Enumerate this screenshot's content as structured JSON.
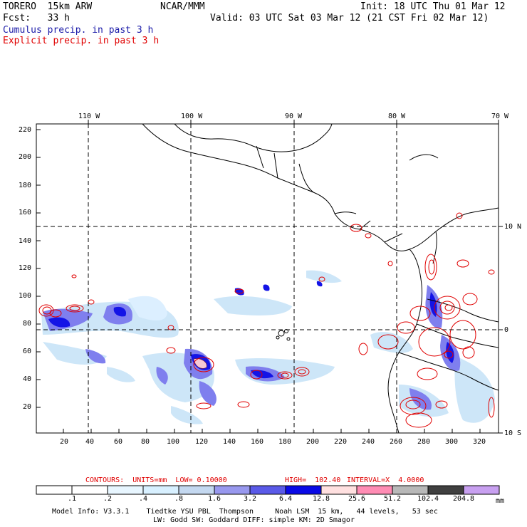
{
  "header": {
    "model": "TORERO  15km ARW",
    "org": "NCAR/MMM",
    "init": "Init: 18 UTC Thu 01 Mar 12",
    "fcst": "Fcst:   33 h",
    "valid": "Valid: 03 UTC Sat 03 Mar 12 (21 CST Fri 02 Mar 12)",
    "field1": "Cumulus precip. in past 3 h",
    "field2": "Explicit precip. in past 3 h"
  },
  "map": {
    "top_lon_labels": [
      "110 W",
      "100 W",
      "90 W",
      "80 W",
      "70 W"
    ],
    "right_lat_labels": [
      "10 N",
      "0",
      "10 S"
    ],
    "left_ticks": [
      "220",
      "200",
      "180",
      "160",
      "140",
      "120",
      "100",
      "80",
      "60",
      "40",
      "20"
    ],
    "bottom_ticks": [
      "20",
      "40",
      "60",
      "80",
      "100",
      "120",
      "140",
      "160",
      "180",
      "200",
      "220",
      "240",
      "260",
      "280",
      "300",
      "320"
    ],
    "colors": {
      "coast": "#000000",
      "explicit": "#e00000",
      "cumulus_light": "#cde6f8",
      "cumulus_mid": "#7f7fee",
      "cumulus_dark": "#1414e6",
      "cumulus_peak": "#f6c8d4"
    }
  },
  "footer": {
    "contours_label": "CONTOURS:  UNITS=mm  LOW= 0.10000",
    "high_label": "HIGH=  102.40",
    "interval_label": "INTERVAL=X  4.0000",
    "colorbar_labels": [
      ".1",
      ".2",
      ".4",
      ".8",
      "1.6",
      "3.2",
      "6.4",
      "12.8",
      "25.6",
      "51.2",
      "102.4",
      "204.8"
    ],
    "colorbar_unit": "mm",
    "colorbar_colors": [
      "#ffffff",
      "#ffffff",
      "#e8f6ff",
      "#d8f0ff",
      "#c4d8f0",
      "#9898ee",
      "#5a5ae8",
      "#0a0ae6",
      "#ffe0e0",
      "#ff8cb4",
      "#b8b8b8",
      "#404040",
      "#c8a0f0"
    ],
    "info1": "Model Info: V3.3.1    Tiedtke YSU PBL  Thompson     Noah LSM  15 km,   44 levels,   53 sec",
    "info2": "LW: Godd SW: Goddard DIFF: simple KM: 2D Smagor"
  }
}
